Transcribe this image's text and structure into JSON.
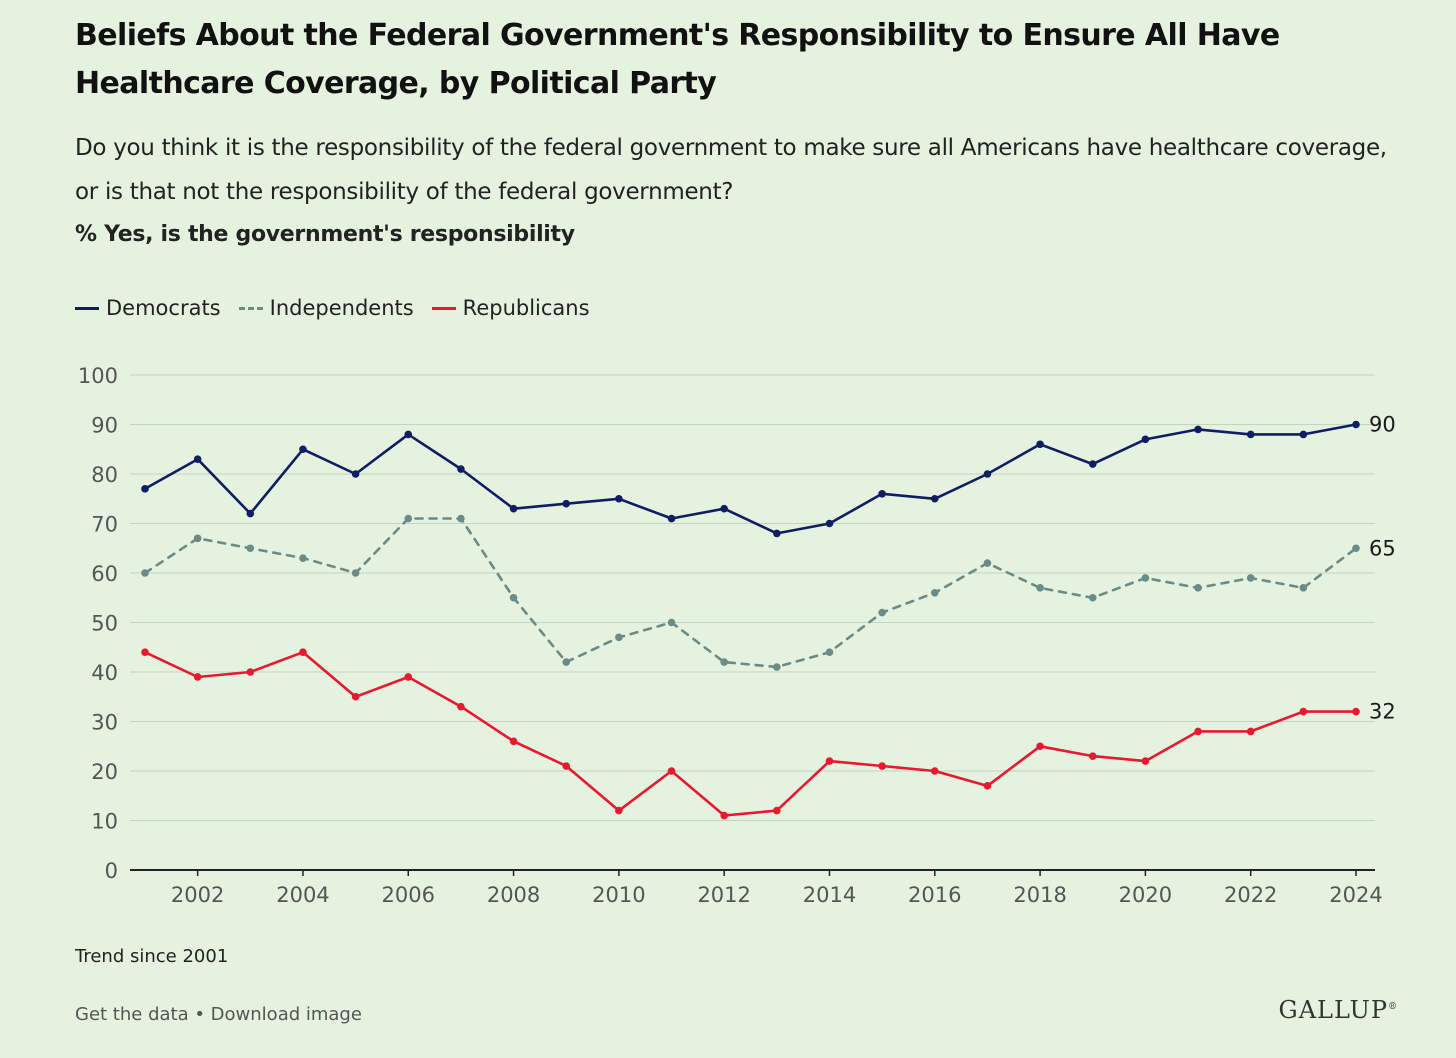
{
  "header": {
    "title": "Beliefs About the Federal Government's Responsibility to Ensure All Have Healthcare Coverage, by Political Party",
    "subtitle": "Do you think it is the responsibility of the federal government to make sure all Americans have healthcare coverage, or is that not the responsibility of the federal government?",
    "measure": "% Yes, is the government's responsibility"
  },
  "legend": {
    "democrats": "Democrats",
    "independents": "Independents",
    "republicans": "Republicans"
  },
  "footnote": "Trend since 2001",
  "footer": {
    "get_data": "Get the data",
    "separator": " • ",
    "download": "Download image",
    "brand": "GALLUP"
  },
  "colors": {
    "democrats": "#0f1e63",
    "independents": "#6b8b86",
    "republicans": "#e8192f",
    "grid": "#c3d4c2",
    "axis": "#222222",
    "tick_text": "#555555"
  },
  "chart_data": {
    "type": "line",
    "x": [
      2001,
      2002,
      2003,
      2004,
      2005,
      2006,
      2007,
      2008,
      2009,
      2010,
      2011,
      2012,
      2013,
      2014,
      2015,
      2016,
      2017,
      2018,
      2019,
      2020,
      2021,
      2022,
      2023,
      2024
    ],
    "xticks": [
      2002,
      2004,
      2006,
      2008,
      2010,
      2012,
      2014,
      2016,
      2018,
      2020,
      2022,
      2024
    ],
    "yticks": [
      0,
      10,
      20,
      30,
      40,
      50,
      60,
      70,
      80,
      90,
      100
    ],
    "ylim": [
      0,
      100
    ],
    "grid": "horizontal",
    "legend_position": "top-left",
    "series": [
      {
        "name": "Democrats",
        "style": "solid",
        "values": [
          77,
          83,
          72,
          85,
          80,
          88,
          81,
          73,
          74,
          75,
          71,
          73,
          68,
          70,
          76,
          75,
          80,
          86,
          82,
          87,
          89,
          88,
          88,
          90
        ],
        "end_label": "90"
      },
      {
        "name": "Independents",
        "style": "dashed",
        "values": [
          60,
          67,
          65,
          63,
          60,
          71,
          71,
          55,
          42,
          47,
          50,
          42,
          41,
          44,
          52,
          56,
          62,
          57,
          55,
          59,
          57,
          59,
          57,
          65
        ],
        "end_label": "65"
      },
      {
        "name": "Republicans",
        "style": "solid",
        "values": [
          44,
          39,
          40,
          44,
          35,
          39,
          33,
          26,
          21,
          12,
          20,
          11,
          12,
          22,
          21,
          20,
          17,
          25,
          23,
          22,
          28,
          28,
          32,
          32
        ],
        "end_label": "32"
      }
    ]
  }
}
